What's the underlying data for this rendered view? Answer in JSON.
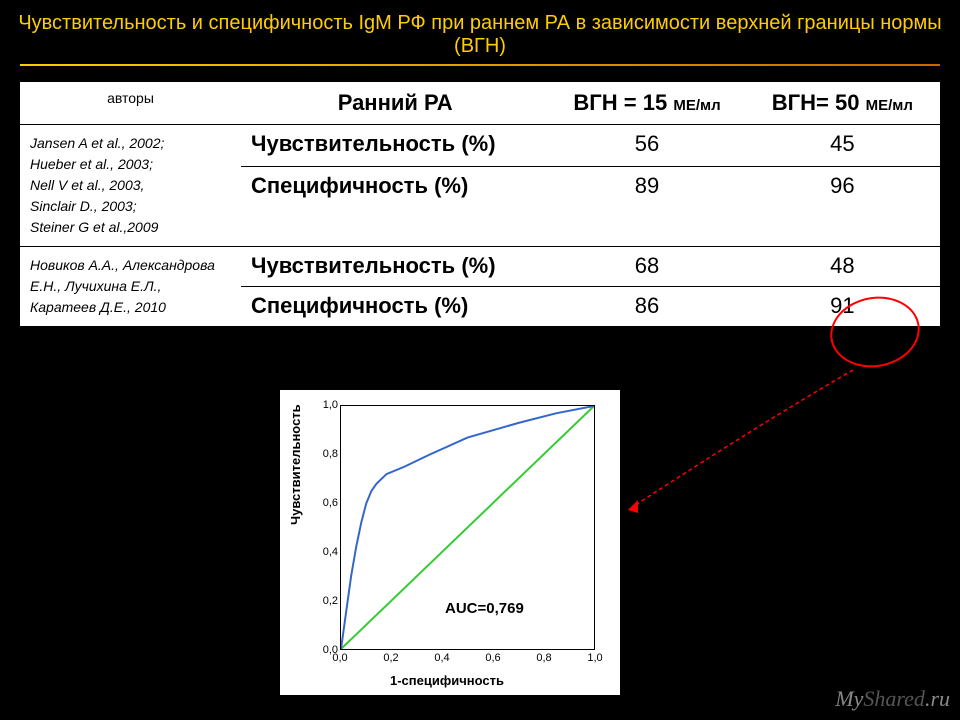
{
  "title": "Чувствительность и специфичность IgM РФ при раннем РА в зависимости верхней границы нормы (ВГН)",
  "columns": {
    "authors": "авторы",
    "ra": "Ранний РА",
    "vgn15_a": "ВГН = 15 ",
    "vgn15_b": "МЕ/мл",
    "vgn50_a": "ВГН= 50 ",
    "vgn50_b": "МЕ/мл"
  },
  "group1": {
    "authors": "Jansen A et al., 2002;\nHueber et al., 2003;\nNell V et al., 2003,\nSinclair D., 2003;\nSteiner G et al.,2009",
    "sens_label": "Чувствительность (%)",
    "spec_label": "Специфичность (%)",
    "sens15": "56",
    "sens50": "45",
    "spec15": "89",
    "spec50": "96"
  },
  "group2": {
    "authors": "Новиков А.А., Александрова Е.Н., Лучихина Е.Л., Каратеев Д.Е., 2010",
    "sens_label": "Чувствительность (%)",
    "spec_label": "Специфичность (%)",
    "sens15": "68",
    "sens50": "48",
    "spec15": "86",
    "spec50": "91"
  },
  "chart": {
    "type": "roc",
    "xlabel": "1-специфичность",
    "ylabel": "Чувствительность",
    "auc_label": "AUC=0,769",
    "xlim": [
      0,
      1
    ],
    "ylim": [
      0,
      1
    ],
    "ticks": [
      "0,0",
      "0,2",
      "0,4",
      "0,6",
      "0,8",
      "1,0"
    ],
    "roc_color": "#3366cc",
    "diag_color": "#33cc33",
    "background": "#ffffff",
    "border_color": "#000000",
    "roc_points": [
      [
        0.0,
        0.0
      ],
      [
        0.02,
        0.15
      ],
      [
        0.04,
        0.3
      ],
      [
        0.06,
        0.42
      ],
      [
        0.08,
        0.52
      ],
      [
        0.1,
        0.6
      ],
      [
        0.12,
        0.65
      ],
      [
        0.14,
        0.68
      ],
      [
        0.18,
        0.72
      ],
      [
        0.25,
        0.75
      ],
      [
        0.35,
        0.8
      ],
      [
        0.5,
        0.87
      ],
      [
        0.7,
        0.93
      ],
      [
        0.85,
        0.97
      ],
      [
        1.0,
        1.0
      ]
    ]
  },
  "circle_color": "#ff0000",
  "arrow_color": "#ff0000",
  "watermark_a": "My",
  "watermark_b": "Shared",
  "watermark_c": ".ru"
}
